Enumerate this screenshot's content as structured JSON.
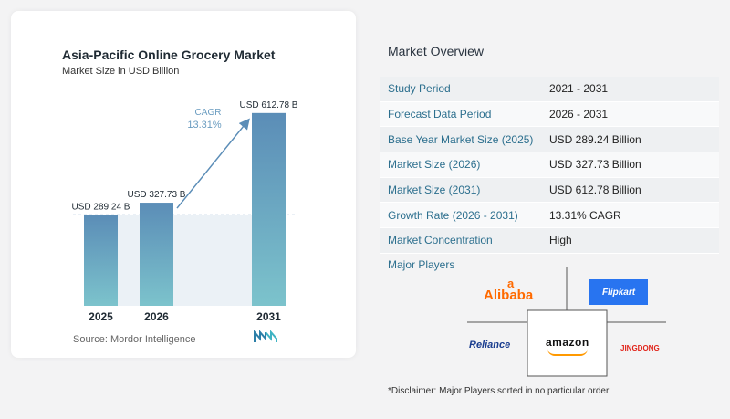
{
  "left_panel": {
    "title": "Asia-Pacific Online Grocery Market",
    "subtitle": "Market Size in USD Billion",
    "source": "Source: Mordor Intelligence",
    "logo_icon": "mordor-intelligence-logo"
  },
  "chart_data": {
    "type": "bar",
    "title": "Asia-Pacific Online Grocery Market",
    "subtitle": "Market Size in USD Billion",
    "categories": [
      "2025",
      "2026",
      "2031"
    ],
    "values": [
      289.24,
      327.73,
      612.78
    ],
    "value_labels": [
      "USD 289.24 B",
      "USD 327.73 B",
      "USD 612.78 B"
    ],
    "ylim": [
      0,
      650
    ],
    "grid": false,
    "annotation": {
      "label": "CAGR",
      "value": "13.31%"
    },
    "colors": {
      "bar_top": "#5b8db7",
      "bar_bottom": "#7cc3cc",
      "band": "#dde8f0",
      "arrow": "#5b8db7"
    }
  },
  "overview": {
    "title": "Market Overview",
    "rows": [
      {
        "key": "Study Period",
        "value": "2021 - 2031"
      },
      {
        "key": "Forecast Data Period",
        "value": "2026 - 2031"
      },
      {
        "key": "Base Year Market Size (2025)",
        "value": "USD 289.24 Billion"
      },
      {
        "key": "Market Size (2026)",
        "value": "USD 327.73 Billion"
      },
      {
        "key": "Market Size (2031)",
        "value": "USD 612.78 Billion"
      },
      {
        "key": "Growth Rate (2026 - 2031)",
        "value": "13.31% CAGR"
      },
      {
        "key": "Market Concentration",
        "value": "High"
      }
    ]
  },
  "players": {
    "title": "Major Players",
    "alibaba": "Alibaba",
    "flipkart": "Flipkart",
    "reliance": "Reliance",
    "amazon": "amazon",
    "jingdong": "JINGDONG"
  },
  "disclaimer": "*Disclaimer: Major Players sorted in no particular order"
}
